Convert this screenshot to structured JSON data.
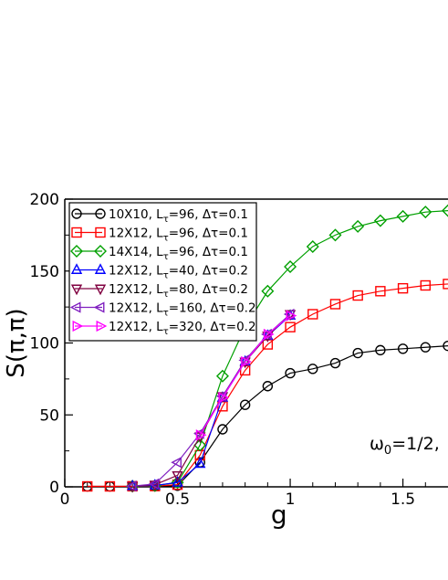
{
  "chart_data": {
    "type": "scatter",
    "xlabel": "g",
    "ylabel": "S(π,π)",
    "xlim": [
      0,
      1.7
    ],
    "ylim": [
      0,
      200
    ],
    "x_ticks": [
      "0",
      "0.5",
      "1",
      "1.5"
    ],
    "x_tick_values": [
      0,
      0.5,
      1,
      1.5
    ],
    "y_ticks": [
      "0",
      "50",
      "100",
      "150",
      "200"
    ],
    "y_tick_values": [
      0,
      50,
      100,
      150,
      200
    ],
    "annotation": "ω0=1/2,",
    "legend_placement": "top-left",
    "series": [
      {
        "name": "10X10, Lτ=96, Δτ=0.1",
        "color": "#000000",
        "marker": "circle",
        "x": [
          0.1,
          0.2,
          0.3,
          0.4,
          0.5,
          0.6,
          0.7,
          0.8,
          0.9,
          1.0,
          1.1,
          1.2,
          1.3,
          1.4,
          1.5,
          1.6,
          1.7
        ],
        "y": [
          0.3,
          0.3,
          0.3,
          0.4,
          0.8,
          17,
          40,
          57,
          70,
          79,
          82,
          86,
          93,
          95,
          96,
          97,
          98
        ]
      },
      {
        "name": "12X12, Lτ=96, Δτ=0.1",
        "color": "#ff0000",
        "marker": "square",
        "x": [
          0.1,
          0.2,
          0.3,
          0.4,
          0.5,
          0.6,
          0.7,
          0.8,
          0.9,
          1.0,
          1.1,
          1.2,
          1.3,
          1.4,
          1.5,
          1.6,
          1.7
        ],
        "y": [
          0.3,
          0.3,
          0.4,
          0.5,
          1.5,
          22,
          56,
          81,
          99,
          111,
          120,
          127,
          133,
          136,
          138,
          140,
          141
        ]
      },
      {
        "name": "14X14, Lτ=96, Δτ=0.1",
        "color": "#00a000",
        "marker": "diamond",
        "x": [
          0.3,
          0.4,
          0.5,
          0.6,
          0.7,
          0.8,
          0.9,
          1.0,
          1.1,
          1.2,
          1.3,
          1.4,
          1.5,
          1.6,
          1.7
        ],
        "y": [
          0.5,
          0.8,
          3,
          29,
          77,
          111,
          136,
          153,
          167,
          175,
          181,
          185,
          188,
          191,
          192
        ]
      },
      {
        "name": "12X12, Lτ=40, Δτ=0.2",
        "color": "#0000ff",
        "marker": "triangle-up",
        "x": [
          0.3,
          0.4,
          0.5,
          0.6,
          0.7,
          0.8,
          0.9,
          1.0
        ],
        "y": [
          0.5,
          1,
          3,
          16,
          62,
          87,
          105,
          119
        ]
      },
      {
        "name": "12X12, Lτ=80, Δτ=0.2",
        "color": "#800040",
        "marker": "triangle-down",
        "x": [
          0.3,
          0.4,
          0.5,
          0.6,
          0.7,
          0.8,
          0.9,
          1.0
        ],
        "y": [
          0.5,
          1.5,
          8,
          35,
          63,
          87,
          105,
          120
        ]
      },
      {
        "name": "12X12, Lτ=160, Δτ=0.2",
        "color": "#8020c0",
        "marker": "triangle-left",
        "x": [
          0.3,
          0.4,
          0.5,
          0.6,
          0.7,
          0.8,
          0.9,
          1.0
        ],
        "y": [
          0.5,
          2,
          17,
          37,
          63,
          88,
          106,
          120
        ]
      },
      {
        "name": "12X12, Lτ=320, Δτ=0.2",
        "color": "#ff00ff",
        "marker": "triangle-right",
        "x": [
          0.6,
          0.7,
          0.8,
          0.9,
          1.0
        ],
        "y": [
          36,
          62,
          87,
          106,
          119
        ]
      }
    ]
  }
}
